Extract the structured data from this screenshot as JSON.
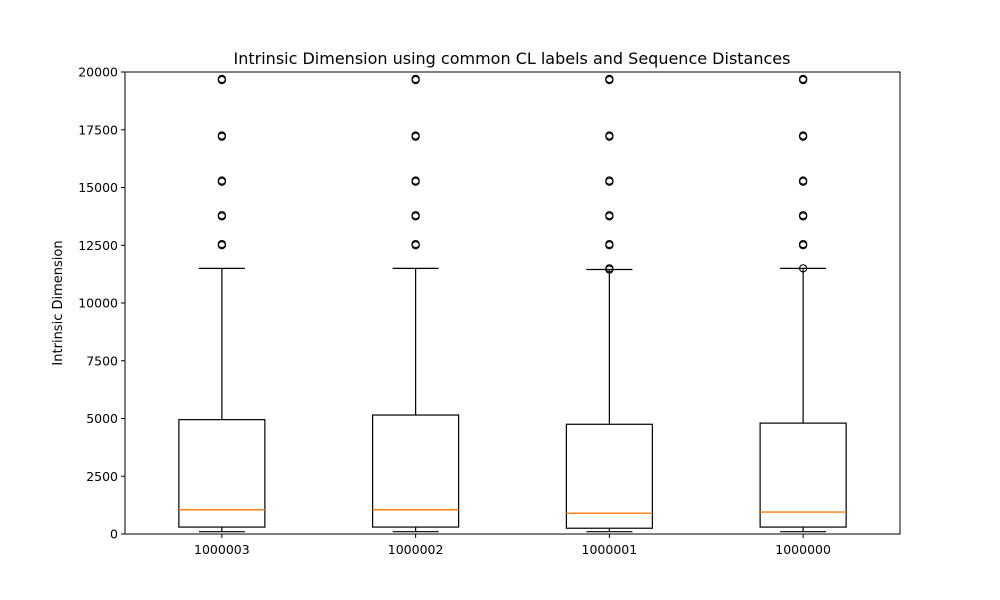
{
  "chart_data": {
    "type": "box",
    "title": "Intrinsic Dimension using common CL labels and Sequence Distances",
    "xlabel": "",
    "ylabel": "Intrinsic Dimension",
    "ylim": [
      0,
      20000
    ],
    "yticks": [
      0,
      2500,
      5000,
      7500,
      10000,
      12500,
      15000,
      17500,
      20000
    ],
    "grid": false,
    "categories": [
      "1000003",
      "1000002",
      "1000001",
      "1000000"
    ],
    "boxes": [
      {
        "label": "1000003",
        "whisker_low": 100,
        "q1": 300,
        "median": 1050,
        "q3": 4950,
        "whisker_high": 11500,
        "outliers": [
          12500,
          12550,
          13750,
          13800,
          15250,
          15300,
          17200,
          17250,
          19650,
          19700
        ]
      },
      {
        "label": "1000002",
        "whisker_low": 100,
        "q1": 300,
        "median": 1050,
        "q3": 5150,
        "whisker_high": 11500,
        "outliers": [
          12500,
          12550,
          13750,
          13800,
          15250,
          15300,
          17200,
          17250,
          19650,
          19700
        ]
      },
      {
        "label": "1000001",
        "whisker_low": 100,
        "q1": 250,
        "median": 900,
        "q3": 4750,
        "whisker_high": 11450,
        "outliers": [
          11450,
          11500,
          12500,
          12550,
          13750,
          13800,
          15250,
          15300,
          17200,
          17250,
          19650,
          19700
        ]
      },
      {
        "label": "1000000",
        "whisker_low": 100,
        "q1": 300,
        "median": 950,
        "q3": 4800,
        "whisker_high": 11500,
        "outliers": [
          11500,
          12500,
          12550,
          13750,
          13800,
          15250,
          15300,
          17200,
          17250,
          19650,
          19700
        ]
      }
    ],
    "colors": {
      "box": "#000000",
      "median": "#ff7f0e",
      "outlier": "#000000",
      "background": "#ffffff"
    }
  }
}
